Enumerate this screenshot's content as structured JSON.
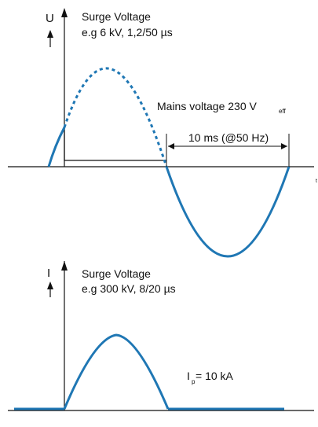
{
  "colors": {
    "wave": "#1f77b4",
    "axis": "#111111",
    "background": "#ffffff"
  },
  "top_diagram": {
    "axis_label": "U",
    "t_label": "t",
    "surge_title": "Surge Voltage",
    "surge_spec": "e.g 6 kV, 1,2/50 µs",
    "mains_label": "Mains voltage 230 V",
    "mains_subscript": "eff",
    "period_label": "10 ms (@50 Hz)"
  },
  "bottom_diagram": {
    "axis_label": "I",
    "surge_title": "Surge Voltage",
    "surge_spec": "e.g 300 kV, 8/20 µs",
    "peak_label_main": "I",
    "peak_label_sub": "p",
    "peak_label_value": " = 10 kA"
  }
}
